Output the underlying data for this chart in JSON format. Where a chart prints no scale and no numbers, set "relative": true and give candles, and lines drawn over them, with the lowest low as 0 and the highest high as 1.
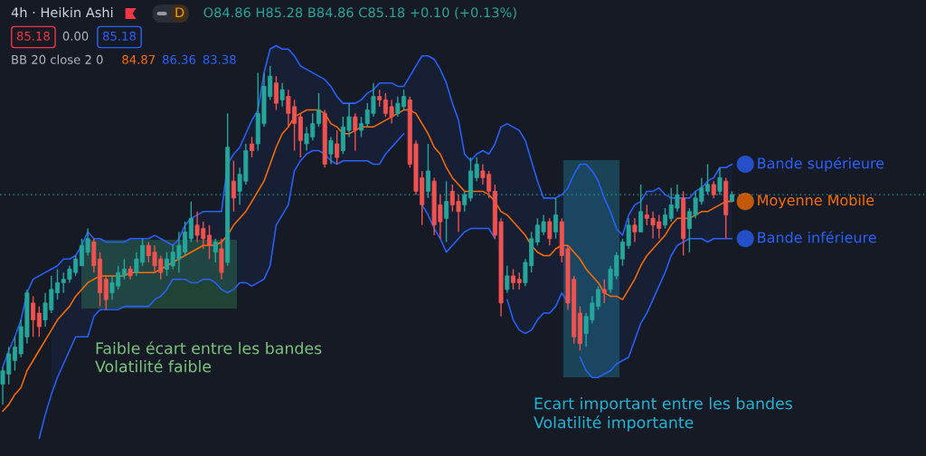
{
  "chart_data": {
    "type": "candlestick",
    "title": "4h · Heikin Ashi",
    "relative": true,
    "categories": [
      null,
      null,
      null,
      null,
      null,
      null,
      null,
      null,
      null,
      null,
      null,
      null,
      null,
      null,
      null,
      null,
      null,
      null,
      null,
      null,
      null,
      null,
      null,
      null,
      null,
      null,
      null,
      null,
      null,
      null,
      null,
      null,
      null,
      null,
      null,
      null,
      null,
      null,
      null,
      null,
      null,
      null,
      null,
      null,
      null,
      null,
      null,
      null,
      null,
      null,
      null,
      null,
      null,
      null,
      null,
      null,
      null,
      null,
      null,
      null,
      null,
      null,
      null,
      null,
      null,
      null,
      null,
      null,
      null,
      null,
      null,
      null,
      null,
      null,
      null,
      null,
      null,
      null,
      null,
      null,
      null,
      null,
      null,
      null,
      null,
      null,
      null,
      null,
      null,
      null,
      null,
      null,
      null,
      null,
      null,
      null,
      null,
      null,
      null,
      null,
      null,
      null,
      null,
      null,
      null,
      null,
      null,
      null,
      null,
      null,
      null,
      null,
      null,
      null,
      null,
      null,
      null,
      null,
      null,
      null,
      null
    ],
    "ohlc": [
      [
        0.06,
        0.11,
        0,
        0.1
      ],
      [
        0.09,
        0.17,
        0.06,
        0.15
      ],
      [
        0.13,
        0.2,
        0.1,
        0.17
      ],
      [
        0.15,
        0.25,
        0.14,
        0.23
      ],
      [
        0.2,
        0.34,
        0.18,
        0.33
      ],
      [
        0.3,
        0.32,
        0.2,
        0.25
      ],
      [
        0.27,
        0.29,
        0.2,
        0.23
      ],
      [
        0.25,
        0.33,
        0.23,
        0.3
      ],
      [
        0.28,
        0.38,
        0.27,
        0.34
      ],
      [
        0.33,
        0.4,
        0.31,
        0.36
      ],
      [
        0.36,
        0.39,
        0.33,
        0.37
      ],
      [
        0.37,
        0.41,
        0.36,
        0.4
      ],
      [
        0.39,
        0.44,
        0.38,
        0.43
      ],
      [
        0.41,
        0.49,
        0.41,
        0.47
      ],
      [
        0.45,
        0.52,
        0.44,
        0.49
      ],
      [
        0.48,
        0.49,
        0.39,
        0.41
      ],
      [
        0.43,
        0.45,
        0.29,
        0.33
      ],
      [
        0.37,
        0.38,
        0.28,
        0.31
      ],
      [
        0.33,
        0.38,
        0.31,
        0.36
      ],
      [
        0.35,
        0.41,
        0.34,
        0.39
      ],
      [
        0.38,
        0.43,
        0.37,
        0.4
      ],
      [
        0.4,
        0.41,
        0.37,
        0.38
      ],
      [
        0.39,
        0.45,
        0.38,
        0.43
      ],
      [
        0.42,
        0.49,
        0.41,
        0.47
      ],
      [
        0.47,
        0.48,
        0.42,
        0.44
      ],
      [
        0.45,
        0.47,
        0.39,
        0.41
      ],
      [
        0.43,
        0.44,
        0.37,
        0.39
      ],
      [
        0.4,
        0.45,
        0.38,
        0.43
      ],
      [
        0.41,
        0.47,
        0.4,
        0.45
      ],
      [
        0.43,
        0.51,
        0.39,
        0.47
      ],
      [
        0.45,
        0.54,
        0.44,
        0.51
      ],
      [
        0.49,
        0.6,
        0.48,
        0.55
      ],
      [
        0.53,
        0.57,
        0.48,
        0.5
      ],
      [
        0.52,
        0.54,
        0.46,
        0.49
      ],
      [
        0.5,
        0.53,
        0.43,
        0.47
      ],
      [
        0.45,
        0.49,
        0.42,
        0.48
      ],
      [
        0.46,
        0.49,
        0.37,
        0.39
      ],
      [
        0.42,
        0.86,
        0.41,
        0.76
      ],
      [
        0.66,
        0.72,
        0.57,
        0.61
      ],
      [
        0.63,
        0.7,
        0.59,
        0.68
      ],
      [
        0.66,
        0.77,
        0.65,
        0.75
      ],
      [
        0.77,
        0.79,
        0.73,
        0.75
      ],
      [
        0.77,
        0.98,
        0.75,
        0.86
      ],
      [
        0.83,
        0.98,
        0.82,
        0.94
      ],
      [
        0.91,
        1,
        0.9,
        0.97
      ],
      [
        0.95,
        0.97,
        0.87,
        0.89
      ],
      [
        0.9,
        0.95,
        0.88,
        0.93
      ],
      [
        0.91,
        0.93,
        0.82,
        0.86
      ],
      [
        0.88,
        0.9,
        0.75,
        0.83
      ],
      [
        0.85,
        0.86,
        0.73,
        0.78
      ],
      [
        0.77,
        0.82,
        0.75,
        0.8
      ],
      [
        0.79,
        0.86,
        0.78,
        0.83
      ],
      [
        0.83,
        0.92,
        0.82,
        0.87
      ],
      [
        0.86,
        0.87,
        0.7,
        0.71
      ],
      [
        0.74,
        0.79,
        0.71,
        0.78
      ],
      [
        0.77,
        0.81,
        0.71,
        0.73
      ],
      [
        0.75,
        0.85,
        0.74,
        0.82
      ],
      [
        0.81,
        0.89,
        0.79,
        0.85
      ],
      [
        0.85,
        0.86,
        0.75,
        0.81
      ],
      [
        0.81,
        0.85,
        0.79,
        0.83
      ],
      [
        0.83,
        0.89,
        0.82,
        0.87
      ],
      [
        0.86,
        0.95,
        0.85,
        0.91
      ],
      [
        0.91,
        0.93,
        0.88,
        0.9
      ],
      [
        0.9,
        0.92,
        0.85,
        0.86
      ],
      [
        0.88,
        0.9,
        0.83,
        0.85
      ],
      [
        0.86,
        0.91,
        0.85,
        0.89
      ],
      [
        0.88,
        0.93,
        0.87,
        0.91
      ],
      [
        0.9,
        0.91,
        0.7,
        0.71
      ],
      [
        0.77,
        0.78,
        0.62,
        0.63
      ],
      [
        0.67,
        0.69,
        0.53,
        0.59
      ],
      [
        0.63,
        0.77,
        0.61,
        0.69
      ],
      [
        0.66,
        0.67,
        0.5,
        0.53
      ],
      [
        0.59,
        0.62,
        0.49,
        0.54
      ],
      [
        0.55,
        0.66,
        0.48,
        0.6
      ],
      [
        0.63,
        0.65,
        0.57,
        0.59
      ],
      [
        0.6,
        0.62,
        0.51,
        0.57
      ],
      [
        0.59,
        0.63,
        0.57,
        0.62
      ],
      [
        0.61,
        0.73,
        0.6,
        0.69
      ],
      [
        0.67,
        0.73,
        0.66,
        0.71
      ],
      [
        0.69,
        0.71,
        0.65,
        0.67
      ],
      [
        0.68,
        0.69,
        0.61,
        0.63
      ],
      [
        0.63,
        0.65,
        0.49,
        0.5
      ],
      [
        0.54,
        0.55,
        0.26,
        0.3
      ],
      [
        0.34,
        0.41,
        0.33,
        0.38
      ],
      [
        0.38,
        0.4,
        0.34,
        0.36
      ],
      [
        0.37,
        0.39,
        0.34,
        0.36
      ],
      [
        0.36,
        0.43,
        0.35,
        0.42
      ],
      [
        0.41,
        0.51,
        0.39,
        0.49
      ],
      [
        0.48,
        0.55,
        0.47,
        0.53
      ],
      [
        0.51,
        0.56,
        0.5,
        0.54
      ],
      [
        0.54,
        0.55,
        0.47,
        0.49
      ],
      [
        0.51,
        0.61,
        0.49,
        0.56
      ],
      [
        0.54,
        0.55,
        0.42,
        0.44
      ],
      [
        0.46,
        0.47,
        0.28,
        0.3
      ],
      [
        0.37,
        0.38,
        0.18,
        0.2
      ],
      [
        0.27,
        0.29,
        0.16,
        0.18
      ],
      [
        0.21,
        0.27,
        0.17,
        0.26
      ],
      [
        0.25,
        0.32,
        0.24,
        0.3
      ],
      [
        0.29,
        0.35,
        0.28,
        0.34
      ],
      [
        0.34,
        0.37,
        0.3,
        0.33
      ],
      [
        0.34,
        0.41,
        0.33,
        0.4
      ],
      [
        0.38,
        0.45,
        0.37,
        0.44
      ],
      [
        0.43,
        0.49,
        0.41,
        0.48
      ],
      [
        0.47,
        0.55,
        0.46,
        0.53
      ],
      [
        0.53,
        0.55,
        0.48,
        0.51
      ],
      [
        0.51,
        0.65,
        0.51,
        0.57
      ],
      [
        0.56,
        0.59,
        0.53,
        0.55
      ],
      [
        0.55,
        0.57,
        0.49,
        0.53
      ],
      [
        0.54,
        0.56,
        0.49,
        0.52
      ],
      [
        0.53,
        0.58,
        0.52,
        0.56
      ],
      [
        0.55,
        0.64,
        0.54,
        0.59
      ],
      [
        0.58,
        0.65,
        0.57,
        0.62
      ],
      [
        0.61,
        0.63,
        0.44,
        0.49
      ],
      [
        0.52,
        0.58,
        0.45,
        0.57
      ],
      [
        0.56,
        0.63,
        0.55,
        0.61
      ],
      [
        0.6,
        0.67,
        0.59,
        0.64
      ],
      [
        0.63,
        0.71,
        0.62,
        0.65
      ],
      [
        0.65,
        0.66,
        0.61,
        0.62
      ],
      [
        0.63,
        0.7,
        0.62,
        0.67
      ],
      [
        0.66,
        0.67,
        0.49,
        0.56
      ],
      [
        0.6,
        0.63,
        0.6,
        0.62
      ]
    ],
    "colors": [
      "#26a69a",
      "#26a69a",
      "#26a69a",
      "#26a69a",
      "#26a69a",
      "#ef5350",
      "#ef5350",
      "#26a69a",
      "#26a69a",
      "#26a69a",
      "#26a69a",
      "#26a69a",
      "#26a69a",
      "#26a69a",
      "#26a69a",
      "#ef5350",
      "#ef5350",
      "#ef5350",
      "#26a69a",
      "#26a69a",
      "#26a69a",
      "#ef5350",
      "#26a69a",
      "#26a69a",
      "#ef5350",
      "#ef5350",
      "#ef5350",
      "#26a69a",
      "#26a69a",
      "#26a69a",
      "#26a69a",
      "#26a69a",
      "#ef5350",
      "#ef5350",
      "#ef5350",
      "#26a69a",
      "#ef5350",
      "#26a69a",
      "#ef5350",
      "#26a69a",
      "#26a69a",
      "#ef5350",
      "#26a69a",
      "#26a69a",
      "#26a69a",
      "#ef5350",
      "#26a69a",
      "#ef5350",
      "#ef5350",
      "#ef5350",
      "#26a69a",
      "#26a69a",
      "#26a69a",
      "#ef5350",
      "#26a69a",
      "#ef5350",
      "#26a69a",
      "#26a69a",
      "#ef5350",
      "#26a69a",
      "#26a69a",
      "#26a69a",
      "#ef5350",
      "#ef5350",
      "#ef5350",
      "#26a69a",
      "#26a69a",
      "#ef5350",
      "#ef5350",
      "#ef5350",
      "#26a69a",
      "#ef5350",
      "#ef5350",
      "#26a69a",
      "#ef5350",
      "#ef5350",
      "#26a69a",
      "#26a69a",
      "#26a69a",
      "#ef5350",
      "#ef5350",
      "#ef5350",
      "#ef5350",
      "#26a69a",
      "#ef5350",
      "#ef5350",
      "#26a69a",
      "#26a69a",
      "#26a69a",
      "#26a69a",
      "#ef5350",
      "#26a69a",
      "#ef5350",
      "#ef5350",
      "#ef5350",
      "#ef5350",
      "#26a69a",
      "#26a69a",
      "#26a69a",
      "#ef5350",
      "#26a69a",
      "#26a69a",
      "#26a69a",
      "#26a69a",
      "#ef5350",
      "#26a69a",
      "#ef5350",
      "#ef5350",
      "#ef5350",
      "#26a69a",
      "#26a69a",
      "#26a69a",
      "#ef5350",
      "#26a69a",
      "#26a69a",
      "#26a69a",
      "#26a69a",
      "#ef5350",
      "#26a69a",
      "#ef5350",
      "#26a69a"
    ],
    "series": [
      {
        "name": "Bande supérieure",
        "type": "line",
        "color": "#2962ff",
        "values": [
          0.11,
          0.16,
          0.2,
          0.25,
          0.33,
          0.37,
          0.38,
          0.39,
          0.4,
          0.41,
          0.43,
          0.43,
          0.44,
          0.47,
          0.51,
          0.49,
          0.49,
          0.48,
          0.48,
          0.48,
          0.48,
          0.49,
          0.49,
          0.49,
          0.49,
          0.5,
          0.49,
          0.48,
          0.47,
          0.49,
          0.53,
          0.55,
          0.56,
          0.57,
          0.57,
          0.57,
          0.57,
          0.71,
          0.74,
          0.76,
          0.8,
          0.84,
          0.87,
          0.98,
          1.05,
          1.06,
          1.05,
          1.05,
          1.03,
          1.0,
          0.99,
          0.98,
          0.97,
          0.96,
          0.94,
          0.91,
          0.89,
          0.89,
          0.89,
          0.9,
          0.92,
          0.93,
          0.95,
          0.95,
          0.95,
          0.94,
          0.94,
          0.97,
          1.0,
          1.03,
          1.03,
          1.02,
          0.99,
          0.95,
          0.89,
          0.84,
          0.74,
          0.72,
          0.74,
          0.75,
          0.74,
          0.77,
          0.82,
          0.83,
          0.82,
          0.81,
          0.78,
          0.72,
          0.66,
          0.61,
          0.61,
          0.61,
          0.62,
          0.64,
          0.68,
          0.71,
          0.71,
          0.69,
          0.66,
          0.61,
          0.57,
          0.52,
          0.5,
          0.56,
          0.59,
          0.6,
          0.63,
          0.63,
          0.64,
          0.62,
          0.61,
          0.61,
          0.61,
          0.61,
          0.63,
          0.64,
          0.66,
          0.67,
          0.7,
          0.7,
          0.71
        ],
        "lower": [
          null,
          null,
          null,
          null,
          null,
          null,
          null,
          null,
          0.03,
          0.08,
          0.12,
          0.16,
          0.2,
          0.2,
          0.2,
          0.26,
          0.28,
          0.28,
          0.28,
          0.28,
          0.29,
          0.29,
          0.29,
          0.29,
          0.29,
          0.31,
          0.32,
          0.34,
          0.37,
          0.37,
          0.37,
          0.36,
          0.36,
          0.37,
          0.37,
          0.36,
          0.34,
          0.33,
          0.34,
          0.36,
          0.36,
          0.35,
          0.36,
          0.37,
          0.41,
          0.53,
          0.56,
          0.59,
          0.69,
          0.72,
          0.74,
          0.75,
          0.75,
          0.74,
          0.72,
          0.71,
          0.72,
          0.72,
          0.72,
          0.72,
          0.72,
          0.71,
          0.71,
          0.74,
          0.76,
          0.78,
          0.8,
          0.75,
          0.65,
          0.59,
          0.56,
          0.52,
          0.49,
          0.45,
          0.47,
          0.49,
          0.51,
          0.52,
          0.52,
          0.52,
          0.52,
          0.49,
          0.41,
          0.31,
          0.25,
          0.22,
          0.21,
          0.22,
          0.25,
          0.27,
          0.27,
          0.29,
          0.33,
          0.3,
          0.21,
          0.14,
          0.1,
          0.08,
          0.08,
          0.09,
          0.1,
          0.12,
          0.13,
          0.14,
          0.19,
          0.24,
          0.27,
          0.31,
          0.35,
          0.39,
          0.44,
          0.47,
          0.48,
          0.49,
          0.49,
          0.49,
          0.48,
          0.49,
          0.49,
          0.49,
          0.49
        ],
        "upper": [
          null,
          null,
          null,
          null,
          null,
          null,
          null,
          null,
          0.4,
          0.41,
          0.43,
          0.43,
          0.44,
          0.47,
          0.51,
          0.49,
          0.49,
          0.48,
          0.48,
          0.48,
          0.48,
          0.49,
          0.49,
          0.49,
          0.49,
          0.5,
          0.49,
          0.48,
          0.47,
          0.49,
          0.53,
          0.55,
          0.56,
          0.57,
          0.57,
          0.57,
          0.57,
          0.71,
          0.74,
          0.76,
          0.8,
          0.84,
          0.87,
          0.98,
          1.05,
          1.06,
          1.05,
          1.05,
          1.03,
          1.0,
          0.99,
          0.98,
          0.97,
          0.96,
          0.94,
          0.91,
          0.89,
          0.89,
          0.89,
          0.9,
          0.92,
          0.93,
          0.95,
          0.95,
          0.95,
          0.94,
          0.94,
          0.97,
          1.0,
          1.03,
          1.03,
          1.02,
          0.99,
          0.95,
          0.89,
          0.84,
          0.74,
          0.72,
          0.74,
          0.75,
          0.74,
          0.77,
          0.82,
          0.83,
          0.82,
          0.81,
          0.78,
          0.72,
          0.66,
          0.61,
          0.61,
          0.61,
          0.62,
          0.64,
          0.68,
          0.71,
          0.71,
          0.69,
          0.66,
          0.61,
          0.57,
          0.52,
          0.5,
          0.56,
          0.59,
          0.6,
          0.63,
          0.63,
          0.64,
          0.62,
          0.61,
          0.61,
          0.61,
          0.61,
          0.63,
          0.64,
          0.66,
          0.67,
          0.7,
          0.7,
          0.71
        ]
      },
      {
        "name": "Moyenne Mobile",
        "type": "line",
        "color": "#ff6d00",
        "values": [
          -0.02,
          0.0,
          0.03,
          0.05,
          0.1,
          0.13,
          0.16,
          0.19,
          0.22,
          0.25,
          0.27,
          0.29,
          0.32,
          0.34,
          0.36,
          0.37,
          0.38,
          0.38,
          0.38,
          0.38,
          0.38,
          0.39,
          0.39,
          0.39,
          0.39,
          0.39,
          0.4,
          0.41,
          0.42,
          0.43,
          0.44,
          0.45,
          0.46,
          0.47,
          0.47,
          0.47,
          0.48,
          0.5,
          0.53,
          0.55,
          0.57,
          0.6,
          0.63,
          0.66,
          0.71,
          0.76,
          0.8,
          0.82,
          0.85,
          0.86,
          0.87,
          0.87,
          0.87,
          0.86,
          0.83,
          0.82,
          0.8,
          0.8,
          0.81,
          0.82,
          0.82,
          0.82,
          0.83,
          0.84,
          0.85,
          0.86,
          0.87,
          0.87,
          0.86,
          0.83,
          0.8,
          0.76,
          0.74,
          0.7,
          0.67,
          0.65,
          0.63,
          0.63,
          0.63,
          0.63,
          0.62,
          0.6,
          0.57,
          0.56,
          0.54,
          0.52,
          0.5,
          0.47,
          0.45,
          0.44,
          0.44,
          0.46,
          0.47,
          0.47,
          0.45,
          0.43,
          0.4,
          0.38,
          0.36,
          0.33,
          0.32,
          0.32,
          0.31,
          0.34,
          0.37,
          0.41,
          0.44,
          0.46,
          0.48,
          0.5,
          0.53,
          0.55,
          0.55,
          0.55,
          0.56,
          0.57,
          0.57,
          0.58,
          0.59,
          0.6,
          0.6
        ]
      },
      {
        "name": "Bande inférieure",
        "type": "line",
        "color": "#2962ff",
        "values": [
          null,
          null,
          null,
          null,
          null,
          null,
          -0.1,
          -0.03,
          0.03,
          0.08,
          0.12,
          0.16,
          0.2,
          0.2,
          0.2,
          0.26,
          0.28,
          0.28,
          0.28,
          0.28,
          0.29,
          0.29,
          0.29,
          0.29,
          0.29,
          0.31,
          0.32,
          0.34,
          0.37,
          0.37,
          0.37,
          0.36,
          0.36,
          0.37,
          0.37,
          0.36,
          0.34,
          0.33,
          0.34,
          0.36,
          0.36,
          0.35,
          0.36,
          0.37,
          0.41,
          0.53,
          0.56,
          0.59,
          0.69,
          0.72,
          0.74,
          0.75,
          0.75,
          0.74,
          0.72,
          0.71,
          0.72,
          0.72,
          0.72,
          0.72,
          0.72,
          0.71,
          0.71,
          0.74,
          0.76,
          0.78,
          0.8,
          null,
          null,
          0.59,
          0.56,
          0.52,
          0.49,
          0.45,
          0.47,
          0.49,
          0.51,
          0.52,
          0.52,
          0.52,
          0.52,
          0.49,
          null,
          0.31,
          0.25,
          0.22,
          0.21,
          0.22,
          0.25,
          0.27,
          0.27,
          0.29,
          0.33,
          0.3,
          null,
          0.14,
          0.1,
          0.08,
          0.08,
          0.09,
          0.1,
          0.12,
          0.13,
          0.14,
          0.19,
          0.24,
          0.27,
          0.31,
          0.35,
          0.39,
          0.44,
          0.47,
          0.48,
          0.49,
          0.49,
          0.49,
          0.48,
          0.49,
          0.49,
          0.49,
          0.49
        ]
      }
    ],
    "ref_lines": [
      {
        "axis": "y",
        "value": 0.62,
        "color": "#26a69a",
        "line_style": "dotted"
      }
    ],
    "annotations": [
      "D",
      "O84.86 H85.28 B84.86 C85.18 +0.10 (+0.13%)",
      "85.18",
      "0.00",
      "85.18",
      "BB 20 close 2 0",
      "84.87",
      "86.36",
      "83.38",
      "Faible écart entre les bandes\nVolatilité faible",
      "Ecart important entre les bandes\nVolatilité importante"
    ]
  }
}
